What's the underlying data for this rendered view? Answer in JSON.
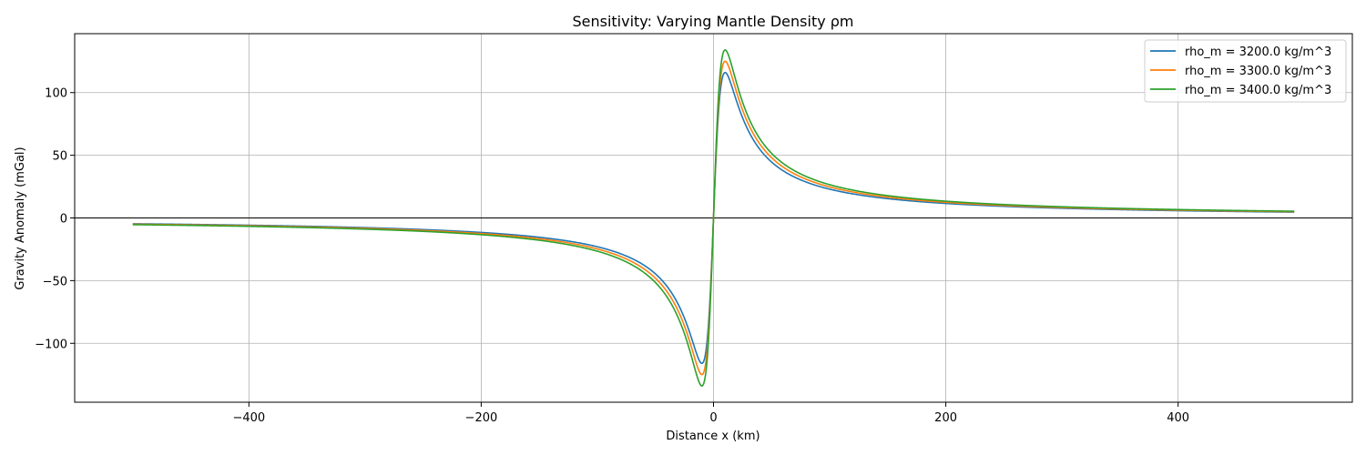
{
  "chart_data": {
    "type": "line",
    "title": "Sensitivity: Varying Mantle Density ρm",
    "xlabel": "Distance x (km)",
    "ylabel": "Gravity Anomaly (mGal)",
    "xlim": [
      -550,
      550
    ],
    "ylim": [
      -147,
      147
    ],
    "xticks": [
      -400,
      -200,
      0,
      200,
      400
    ],
    "xtick_labels": [
      "−400",
      "−200",
      "0",
      "200",
      "400"
    ],
    "yticks": [
      -100,
      -50,
      0,
      50,
      100
    ],
    "ytick_labels": [
      "−100",
      "−50",
      "0",
      "50",
      "100"
    ],
    "grid": true,
    "zero_line": true,
    "legend_position": "top-right",
    "x_range": [
      -500,
      500
    ],
    "depth_scale_km": 10,
    "series": [
      {
        "name": "rho_m = 3200.0 kg/m^3",
        "color": "#1f77b4",
        "peak": 116
      },
      {
        "name": "rho_m = 3300.0 kg/m^3",
        "color": "#ff7f0e",
        "peak": 125
      },
      {
        "name": "rho_m = 3400.0 kg/m^3",
        "color": "#2ca02c",
        "peak": 134
      }
    ]
  }
}
